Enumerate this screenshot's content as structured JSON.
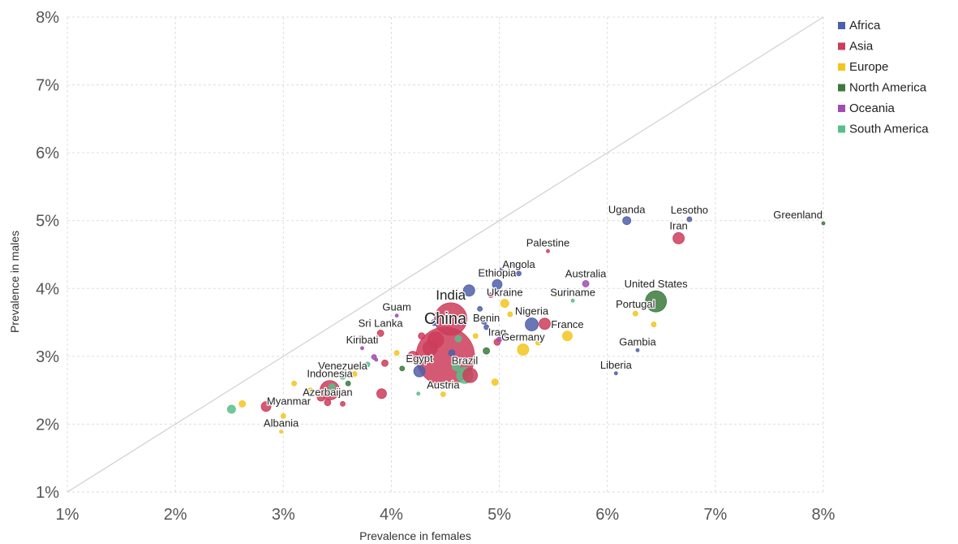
{
  "chart_data": {
    "type": "scatter",
    "title": "",
    "xlabel": "Prevalence in females",
    "ylabel": "Prevalence in males",
    "xlim": [
      1,
      8
    ],
    "ylim": [
      1,
      8
    ],
    "x_ticks": [
      "1%",
      "2%",
      "3%",
      "4%",
      "5%",
      "6%",
      "7%",
      "8%"
    ],
    "y_ticks": [
      "1%",
      "2%",
      "3%",
      "4%",
      "5%",
      "6%",
      "7%",
      "8%"
    ],
    "grid": true,
    "reference_line": "y = x",
    "legend_position": "top-right",
    "series": [
      {
        "name": "Africa",
        "color": "#4f5faa"
      },
      {
        "name": "Asia",
        "color": "#cc3d5a"
      },
      {
        "name": "Europe",
        "color": "#f3c51f"
      },
      {
        "name": "North America",
        "color": "#3c7a3c"
      },
      {
        "name": "Oceania",
        "color": "#a14cb0"
      },
      {
        "name": "South America",
        "color": "#58be8a"
      }
    ],
    "points": [
      {
        "label": "Uganda",
        "region": "Africa",
        "x": 6.18,
        "y": 5.0,
        "size": 5,
        "label_pos": "above"
      },
      {
        "label": "Lesotho",
        "region": "Africa",
        "x": 6.76,
        "y": 5.02,
        "size": 3,
        "label_pos": "above"
      },
      {
        "label": "Iran",
        "region": "Asia",
        "x": 6.66,
        "y": 4.74,
        "size": 7,
        "label_pos": "above"
      },
      {
        "label": "Greenland",
        "region": "North America",
        "x": 8.0,
        "y": 4.96,
        "size": 2,
        "label_pos": "above-left"
      },
      {
        "label": "Palestine",
        "region": "Asia",
        "x": 5.45,
        "y": 4.55,
        "size": 2,
        "label_pos": "above"
      },
      {
        "label": "Angola",
        "region": "Africa",
        "x": 5.18,
        "y": 4.22,
        "size": 3,
        "label_pos": "above"
      },
      {
        "label": "Australia",
        "region": "Oceania",
        "x": 5.8,
        "y": 4.07,
        "size": 4,
        "label_pos": "above"
      },
      {
        "label": "Ethiopia",
        "region": "Africa",
        "x": 4.98,
        "y": 4.06,
        "size": 6,
        "label_pos": "above"
      },
      {
        "label": "United States",
        "region": "North America",
        "x": 6.45,
        "y": 3.81,
        "size": 13,
        "label_pos": "above"
      },
      {
        "label": "Ukraine",
        "region": "Europe",
        "x": 5.05,
        "y": 3.78,
        "size": 5,
        "label_pos": "above"
      },
      {
        "label": "Suriname",
        "region": "South America",
        "x": 5.68,
        "y": 3.82,
        "size": 2,
        "label_pos": "above"
      },
      {
        "label": "Portugal",
        "region": "Europe",
        "x": 6.26,
        "y": 3.63,
        "size": 3,
        "label_pos": "above"
      },
      {
        "label": "Guam",
        "region": "Oceania",
        "x": 4.05,
        "y": 3.6,
        "size": 2,
        "label_pos": "above"
      },
      {
        "label": "India",
        "region": "Asia",
        "x": 4.55,
        "y": 3.55,
        "size": 20,
        "label_pos": "above"
      },
      {
        "label": "Nigeria",
        "region": "Africa",
        "x": 5.3,
        "y": 3.47,
        "size": 8,
        "label_pos": "above"
      },
      {
        "label": "Benin",
        "region": "Africa",
        "x": 4.88,
        "y": 3.43,
        "size": 3,
        "label_pos": "above"
      },
      {
        "label": "Sri Lanka",
        "region": "Asia",
        "x": 3.9,
        "y": 3.34,
        "size": 4,
        "label_pos": "above"
      },
      {
        "label": "France",
        "region": "Europe",
        "x": 5.63,
        "y": 3.3,
        "size": 6,
        "label_pos": "above"
      },
      {
        "label": "Iraq",
        "region": "Asia",
        "x": 4.98,
        "y": 3.21,
        "size": 4,
        "label_pos": "above"
      },
      {
        "label": "Germany",
        "region": "Europe",
        "x": 5.22,
        "y": 3.1,
        "size": 7,
        "label_pos": "above"
      },
      {
        "label": "China",
        "region": "Asia",
        "x": 4.5,
        "y": 3.0,
        "size": 36,
        "label_pos": "above"
      },
      {
        "label": "Kiribati",
        "region": "Oceania",
        "x": 3.73,
        "y": 3.12,
        "size": 2,
        "label_pos": "above"
      },
      {
        "label": "Gambia",
        "region": "Africa",
        "x": 6.28,
        "y": 3.09,
        "size": 2,
        "label_pos": "above"
      },
      {
        "label": "Egypt",
        "region": "Africa",
        "x": 4.26,
        "y": 2.78,
        "size": 7,
        "label_pos": "above"
      },
      {
        "label": "Brazil",
        "region": "South America",
        "x": 4.68,
        "y": 2.72,
        "size": 10,
        "label_pos": "above"
      },
      {
        "label": "Liberia",
        "region": "Africa",
        "x": 6.08,
        "y": 2.75,
        "size": 2,
        "label_pos": "above"
      },
      {
        "label": "Venezuela",
        "region": "South America",
        "x": 3.55,
        "y": 2.71,
        "size": 4,
        "label_pos": "above"
      },
      {
        "label": "Indonesia",
        "region": "Asia",
        "x": 3.43,
        "y": 2.5,
        "size": 12,
        "label_pos": "above"
      },
      {
        "label": "Austria",
        "region": "Europe",
        "x": 4.48,
        "y": 2.44,
        "size": 3,
        "label_pos": "above"
      },
      {
        "label": "Myanmar",
        "region": "Asia",
        "x": 2.84,
        "y": 2.26,
        "size": 6,
        "label_pos": "above-right"
      },
      {
        "label": "Azerbaijan",
        "region": "Asia",
        "x": 3.41,
        "y": 2.32,
        "size": 4,
        "label_pos": "above"
      },
      {
        "label": "Albania",
        "region": "Europe",
        "x": 2.98,
        "y": 1.89,
        "size": 2,
        "label_pos": "above"
      },
      {
        "label": "",
        "region": "South America",
        "x": 2.52,
        "y": 2.22,
        "size": 5
      },
      {
        "label": "",
        "region": "Europe",
        "x": 2.62,
        "y": 2.3,
        "size": 4
      },
      {
        "label": "",
        "region": "Asia",
        "x": 3.91,
        "y": 2.45,
        "size": 6
      },
      {
        "label": "",
        "region": "Asia",
        "x": 4.2,
        "y": 2.99,
        "size": 7
      },
      {
        "label": "",
        "region": "Africa",
        "x": 4.72,
        "y": 3.97,
        "size": 7
      },
      {
        "label": "",
        "region": "Asia",
        "x": 5.42,
        "y": 3.48,
        "size": 7
      },
      {
        "label": "",
        "region": "Asia",
        "x": 4.41,
        "y": 3.24,
        "size": 10
      },
      {
        "label": "",
        "region": "Asia",
        "x": 4.36,
        "y": 3.12,
        "size": 9
      },
      {
        "label": "",
        "region": "Asia",
        "x": 4.73,
        "y": 2.72,
        "size": 9
      },
      {
        "label": "",
        "region": "Africa",
        "x": 4.86,
        "y": 3.52,
        "size": 4
      },
      {
        "label": "",
        "region": "Europe",
        "x": 4.96,
        "y": 2.62,
        "size": 4
      },
      {
        "label": "",
        "region": "Europe",
        "x": 3.1,
        "y": 2.6,
        "size": 3
      },
      {
        "label": "",
        "region": "Europe",
        "x": 3.32,
        "y": 2.45,
        "size": 4
      },
      {
        "label": "",
        "region": "Asia",
        "x": 3.35,
        "y": 2.4,
        "size": 5
      },
      {
        "label": "",
        "region": "South America",
        "x": 3.45,
        "y": 2.55,
        "size": 4
      },
      {
        "label": "",
        "region": "North America",
        "x": 3.6,
        "y": 2.6,
        "size": 3
      },
      {
        "label": "",
        "region": "Europe",
        "x": 3.66,
        "y": 2.74,
        "size": 3
      },
      {
        "label": "",
        "region": "South America",
        "x": 3.78,
        "y": 2.88,
        "size": 3
      },
      {
        "label": "",
        "region": "Oceania",
        "x": 3.84,
        "y": 2.99,
        "size": 3
      },
      {
        "label": "",
        "region": "Asia",
        "x": 3.94,
        "y": 2.9,
        "size": 4
      },
      {
        "label": "",
        "region": "North America",
        "x": 4.1,
        "y": 2.82,
        "size": 3
      },
      {
        "label": "",
        "region": "Europe",
        "x": 4.05,
        "y": 3.05,
        "size": 3
      },
      {
        "label": "",
        "region": "Asia",
        "x": 4.28,
        "y": 3.3,
        "size": 4
      },
      {
        "label": "",
        "region": "Africa",
        "x": 4.4,
        "y": 3.5,
        "size": 4
      },
      {
        "label": "",
        "region": "South America",
        "x": 4.62,
        "y": 3.26,
        "size": 4
      },
      {
        "label": "",
        "region": "Europe",
        "x": 4.78,
        "y": 3.3,
        "size": 3
      },
      {
        "label": "",
        "region": "Africa",
        "x": 4.82,
        "y": 3.7,
        "size": 3
      },
      {
        "label": "",
        "region": "Asia",
        "x": 4.92,
        "y": 3.9,
        "size": 3
      },
      {
        "label": "",
        "region": "Europe",
        "x": 5.1,
        "y": 3.62,
        "size": 3
      },
      {
        "label": "",
        "region": "North America",
        "x": 4.88,
        "y": 3.08,
        "size": 4
      },
      {
        "label": "",
        "region": "Africa",
        "x": 5.12,
        "y": 4.35,
        "size": 2
      },
      {
        "label": "",
        "region": "Africa",
        "x": 5.02,
        "y": 4.28,
        "size": 2
      },
      {
        "label": "",
        "region": "Europe",
        "x": 5.52,
        "y": 3.9,
        "size": 2
      },
      {
        "label": "",
        "region": "Europe",
        "x": 6.43,
        "y": 3.47,
        "size": 3
      },
      {
        "label": "",
        "region": "Europe",
        "x": 5.36,
        "y": 3.2,
        "size": 3
      },
      {
        "label": "",
        "region": "South America",
        "x": 4.5,
        "y": 2.6,
        "size": 3
      },
      {
        "label": "",
        "region": "South America",
        "x": 4.25,
        "y": 2.45,
        "size": 2
      },
      {
        "label": "",
        "region": "Asia",
        "x": 3.55,
        "y": 2.3,
        "size": 3
      },
      {
        "label": "",
        "region": "Europe",
        "x": 3.0,
        "y": 2.12,
        "size": 3
      },
      {
        "label": "",
        "region": "Europe",
        "x": 3.25,
        "y": 2.5,
        "size": 3
      },
      {
        "label": "",
        "region": "Asia",
        "x": 3.5,
        "y": 2.47,
        "size": 5
      },
      {
        "label": "",
        "region": "Oceania",
        "x": 3.86,
        "y": 2.95,
        "size": 2
      },
      {
        "label": "",
        "region": "South America",
        "x": 4.6,
        "y": 2.85,
        "size": 5
      },
      {
        "label": "",
        "region": "Africa",
        "x": 4.56,
        "y": 3.05,
        "size": 4
      },
      {
        "label": "",
        "region": "Oceania",
        "x": 5.0,
        "y": 3.25,
        "size": 3
      }
    ]
  }
}
